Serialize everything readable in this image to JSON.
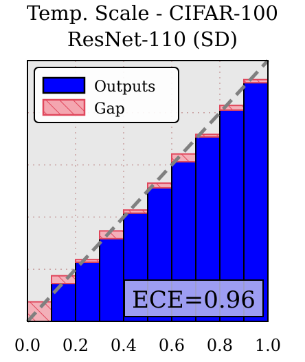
{
  "chart_data": {
    "type": "bar",
    "title": "Temp. Scale - CIFAR-100",
    "subtitle": "ResNet-110 (SD)",
    "xlabel": "",
    "ylabel": "",
    "xlim": [
      0,
      1
    ],
    "ylim": [
      0,
      1
    ],
    "x_ticks": [
      "0.0",
      "0.2",
      "0.4",
      "0.6",
      "0.8",
      "1.0"
    ],
    "bin_edges": [
      0.0,
      0.1,
      0.2,
      0.3,
      0.4,
      0.5,
      0.6,
      0.7,
      0.8,
      0.9,
      1.0
    ],
    "bin_centers": [
      0.05,
      0.15,
      0.25,
      0.35,
      0.45,
      0.55,
      0.65,
      0.75,
      0.85,
      0.95
    ],
    "series": [
      {
        "name": "Outputs",
        "values": [
          0.0,
          0.145,
          0.227,
          0.317,
          0.415,
          0.512,
          0.612,
          0.707,
          0.81,
          0.915
        ]
      },
      {
        "name": "Gap",
        "values": [
          0.075,
          0.03,
          0.01,
          0.03,
          0.012,
          0.018,
          0.03,
          0.01,
          0.018,
          0.012
        ]
      }
    ],
    "grid": true,
    "legend_position": "top-left",
    "annotation": "ECE=0.96",
    "colors": {
      "outputs": "#0000ff",
      "gap": "#f4a6b0",
      "gap_edge": "#e0475c",
      "diagonal": "#808080",
      "background": "#e8e8e8",
      "ece_box": "#b8b8f0"
    }
  }
}
